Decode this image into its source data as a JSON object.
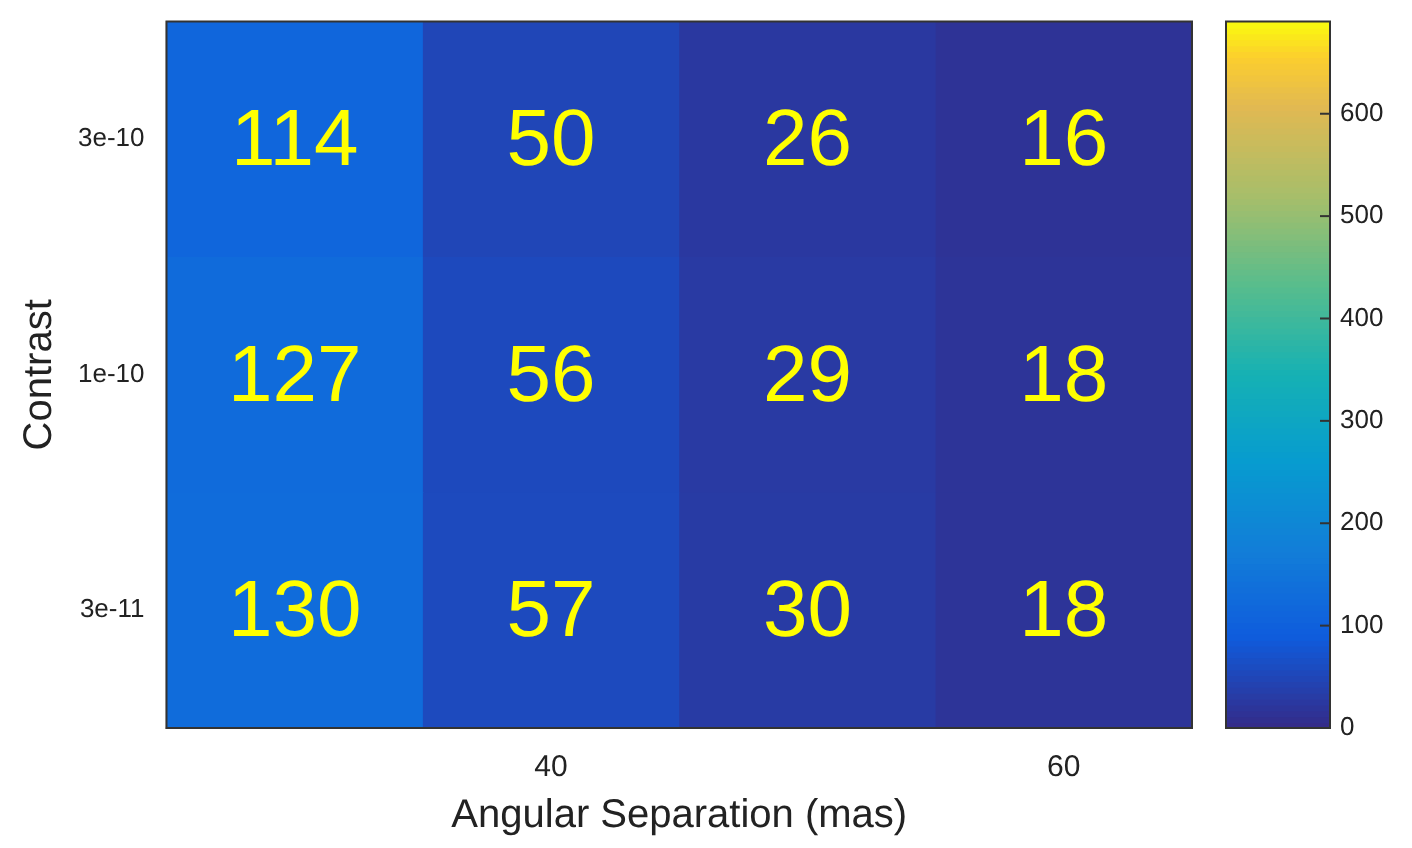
{
  "chart_data": {
    "type": "heatmap",
    "xlabel": "Angular Separation (mas)",
    "ylabel": "Contrast",
    "categories": [
      null,
      "40",
      null,
      "60"
    ],
    "y_categories": [
      "3e-10",
      "1e-10",
      "3e-11"
    ],
    "cells": [
      [
        114,
        50,
        26,
        16
      ],
      [
        127,
        56,
        29,
        18
      ],
      [
        130,
        57,
        30,
        18
      ]
    ],
    "clim": [
      0,
      690
    ],
    "cticks": [
      0,
      100,
      200,
      300,
      400,
      500,
      600
    ],
    "data_labels": true
  }
}
